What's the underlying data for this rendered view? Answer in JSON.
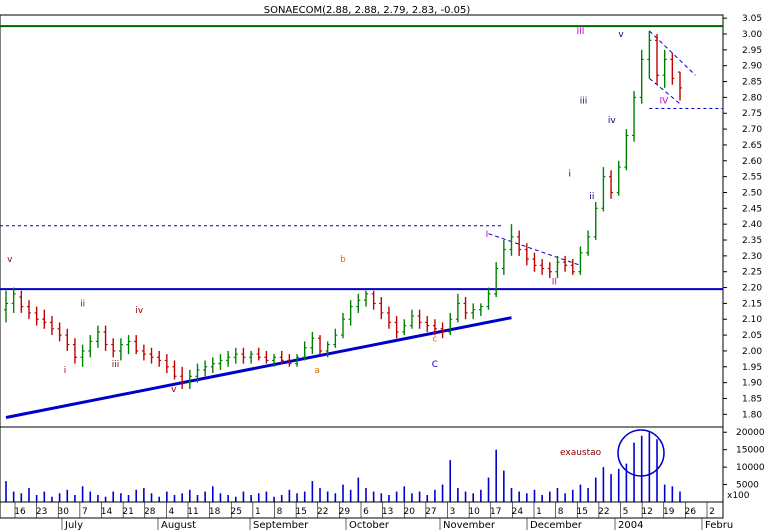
{
  "chart_data": {
    "type": "ohlc",
    "title": "SONAECOM(2.88, 2.88, 2.79, 2.83, -0.05)",
    "price_axis": {
      "ylim": [
        1.76,
        3.06
      ],
      "ticks": [
        "3.05",
        "3.00",
        "2.95",
        "2.90",
        "2.85",
        "2.80",
        "2.75",
        "2.70",
        "2.65",
        "2.60",
        "2.55",
        "2.50",
        "2.45",
        "2.40",
        "2.35",
        "2.30",
        "2.25",
        "2.20",
        "2.15",
        "2.10",
        "2.05",
        "2.00",
        "1.95",
        "1.90",
        "1.85",
        "1.80"
      ]
    },
    "volume_axis": {
      "ylim": [
        0,
        21500
      ],
      "ticks": [
        "20000",
        "15000",
        "10000",
        "5000"
      ],
      "unit_label": "x100"
    },
    "date_axis": {
      "day_ticks": [
        "16",
        "23",
        "30",
        "7",
        "14",
        "21",
        "28",
        "4",
        "11",
        "18",
        "25",
        "1",
        "8",
        "15",
        "22",
        "29",
        "6",
        "13",
        "20",
        "27",
        "3",
        "10",
        "17",
        "24",
        "1",
        "8",
        "15",
        "22",
        "5",
        "12",
        "19",
        "26",
        "2"
      ],
      "month_labels": [
        "July",
        "August",
        "September",
        "October",
        "November",
        "December",
        "2004",
        "Febru"
      ]
    },
    "horizontal_lines": [
      {
        "price": 3.025,
        "color": "#006400",
        "style": "solid"
      },
      {
        "price": 2.195,
        "color": "#0000cc",
        "style": "solid"
      },
      {
        "price": 2.395,
        "color": "#0000cc",
        "style": "dashed"
      },
      {
        "price": 2.765,
        "color": "#0000cc",
        "style": "dashed"
      }
    ],
    "price_series": [
      {
        "o": 2.13,
        "h": 2.19,
        "l": 2.09,
        "c": 2.15
      },
      {
        "o": 2.15,
        "h": 2.2,
        "l": 2.12,
        "c": 2.18
      },
      {
        "o": 2.17,
        "h": 2.19,
        "l": 2.12,
        "c": 2.14
      },
      {
        "o": 2.14,
        "h": 2.16,
        "l": 2.1,
        "c": 2.12
      },
      {
        "o": 2.12,
        "h": 2.14,
        "l": 2.08,
        "c": 2.1
      },
      {
        "o": 2.1,
        "h": 2.13,
        "l": 2.07,
        "c": 2.09
      },
      {
        "o": 2.09,
        "h": 2.11,
        "l": 2.05,
        "c": 2.07
      },
      {
        "o": 2.07,
        "h": 2.09,
        "l": 2.03,
        "c": 2.05
      },
      {
        "o": 2.05,
        "h": 2.07,
        "l": 2.0,
        "c": 2.02
      },
      {
        "o": 2.02,
        "h": 2.04,
        "l": 1.96,
        "c": 1.98
      },
      {
        "o": 1.98,
        "h": 2.02,
        "l": 1.95,
        "c": 2.0
      },
      {
        "o": 2.0,
        "h": 2.05,
        "l": 1.98,
        "c": 2.03
      },
      {
        "o": 2.03,
        "h": 2.08,
        "l": 2.01,
        "c": 2.06
      },
      {
        "o": 2.06,
        "h": 2.08,
        "l": 2.0,
        "c": 2.02
      },
      {
        "o": 2.02,
        "h": 2.04,
        "l": 1.98,
        "c": 2.0
      },
      {
        "o": 2.0,
        "h": 2.04,
        "l": 1.97,
        "c": 2.02
      },
      {
        "o": 2.02,
        "h": 2.05,
        "l": 1.99,
        "c": 2.03
      },
      {
        "o": 2.03,
        "h": 2.05,
        "l": 1.99,
        "c": 2.0
      },
      {
        "o": 2.0,
        "h": 2.02,
        "l": 1.97,
        "c": 1.99
      },
      {
        "o": 1.99,
        "h": 2.01,
        "l": 1.96,
        "c": 1.98
      },
      {
        "o": 1.98,
        "h": 2.0,
        "l": 1.95,
        "c": 1.97
      },
      {
        "o": 1.97,
        "h": 1.99,
        "l": 1.93,
        "c": 1.95
      },
      {
        "o": 1.95,
        "h": 1.97,
        "l": 1.91,
        "c": 1.92
      },
      {
        "o": 1.92,
        "h": 1.95,
        "l": 1.88,
        "c": 1.9
      },
      {
        "o": 1.9,
        "h": 1.94,
        "l": 1.88,
        "c": 1.92
      },
      {
        "o": 1.92,
        "h": 1.96,
        "l": 1.9,
        "c": 1.94
      },
      {
        "o": 1.94,
        "h": 1.97,
        "l": 1.92,
        "c": 1.95
      },
      {
        "o": 1.95,
        "h": 1.98,
        "l": 1.93,
        "c": 1.96
      },
      {
        "o": 1.96,
        "h": 1.99,
        "l": 1.94,
        "c": 1.97
      },
      {
        "o": 1.97,
        "h": 2.0,
        "l": 1.95,
        "c": 1.98
      },
      {
        "o": 1.98,
        "h": 2.01,
        "l": 1.96,
        "c": 1.99
      },
      {
        "o": 1.99,
        "h": 2.01,
        "l": 1.96,
        "c": 1.98
      },
      {
        "o": 1.98,
        "h": 2.0,
        "l": 1.96,
        "c": 1.99
      },
      {
        "o": 1.99,
        "h": 2.01,
        "l": 1.97,
        "c": 1.98
      },
      {
        "o": 1.98,
        "h": 2.0,
        "l": 1.96,
        "c": 1.97
      },
      {
        "o": 1.97,
        "h": 1.99,
        "l": 1.95,
        "c": 1.98
      },
      {
        "o": 1.98,
        "h": 2.0,
        "l": 1.96,
        "c": 1.97
      },
      {
        "o": 1.97,
        "h": 1.99,
        "l": 1.95,
        "c": 1.96
      },
      {
        "o": 1.96,
        "h": 1.99,
        "l": 1.95,
        "c": 1.98
      },
      {
        "o": 1.98,
        "h": 2.03,
        "l": 1.97,
        "c": 2.01
      },
      {
        "o": 2.01,
        "h": 2.06,
        "l": 1.99,
        "c": 2.04
      },
      {
        "o": 2.04,
        "h": 2.05,
        "l": 1.99,
        "c": 2.0
      },
      {
        "o": 2.0,
        "h": 2.03,
        "l": 1.98,
        "c": 2.02
      },
      {
        "o": 2.02,
        "h": 2.07,
        "l": 2.01,
        "c": 2.05
      },
      {
        "o": 2.05,
        "h": 2.12,
        "l": 2.04,
        "c": 2.1
      },
      {
        "o": 2.1,
        "h": 2.16,
        "l": 2.08,
        "c": 2.14
      },
      {
        "o": 2.14,
        "h": 2.18,
        "l": 2.12,
        "c": 2.16
      },
      {
        "o": 2.16,
        "h": 2.19,
        "l": 2.14,
        "c": 2.18
      },
      {
        "o": 2.18,
        "h": 2.19,
        "l": 2.13,
        "c": 2.15
      },
      {
        "o": 2.15,
        "h": 2.17,
        "l": 2.1,
        "c": 2.12
      },
      {
        "o": 2.12,
        "h": 2.14,
        "l": 2.07,
        "c": 2.09
      },
      {
        "o": 2.09,
        "h": 2.11,
        "l": 2.04,
        "c": 2.06
      },
      {
        "o": 2.06,
        "h": 2.1,
        "l": 2.05,
        "c": 2.08
      },
      {
        "o": 2.08,
        "h": 2.13,
        "l": 2.07,
        "c": 2.11
      },
      {
        "o": 2.11,
        "h": 2.13,
        "l": 2.07,
        "c": 2.09
      },
      {
        "o": 2.09,
        "h": 2.11,
        "l": 2.06,
        "c": 2.08
      },
      {
        "o": 2.08,
        "h": 2.1,
        "l": 2.05,
        "c": 2.07
      },
      {
        "o": 2.07,
        "h": 2.09,
        "l": 2.04,
        "c": 2.06
      },
      {
        "o": 2.06,
        "h": 2.12,
        "l": 2.05,
        "c": 2.1
      },
      {
        "o": 2.1,
        "h": 2.18,
        "l": 2.09,
        "c": 2.15
      },
      {
        "o": 2.15,
        "h": 2.17,
        "l": 2.1,
        "c": 2.12
      },
      {
        "o": 2.12,
        "h": 2.15,
        "l": 2.1,
        "c": 2.13
      },
      {
        "o": 2.13,
        "h": 2.15,
        "l": 2.11,
        "c": 2.14
      },
      {
        "o": 2.14,
        "h": 2.2,
        "l": 2.13,
        "c": 2.18
      },
      {
        "o": 2.18,
        "h": 2.28,
        "l": 2.17,
        "c": 2.26
      },
      {
        "o": 2.26,
        "h": 2.35,
        "l": 2.24,
        "c": 2.32
      },
      {
        "o": 2.32,
        "h": 2.4,
        "l": 2.3,
        "c": 2.36
      },
      {
        "o": 2.36,
        "h": 2.38,
        "l": 2.3,
        "c": 2.32
      },
      {
        "o": 2.32,
        "h": 2.34,
        "l": 2.27,
        "c": 2.29
      },
      {
        "o": 2.29,
        "h": 2.31,
        "l": 2.25,
        "c": 2.27
      },
      {
        "o": 2.27,
        "h": 2.29,
        "l": 2.24,
        "c": 2.26
      },
      {
        "o": 2.26,
        "h": 2.28,
        "l": 2.23,
        "c": 2.25
      },
      {
        "o": 2.25,
        "h": 2.3,
        "l": 2.23,
        "c": 2.28
      },
      {
        "o": 2.28,
        "h": 2.3,
        "l": 2.25,
        "c": 2.27
      },
      {
        "o": 2.27,
        "h": 2.29,
        "l": 2.24,
        "c": 2.25
      },
      {
        "o": 2.25,
        "h": 2.33,
        "l": 2.24,
        "c": 2.31
      },
      {
        "o": 2.31,
        "h": 2.38,
        "l": 2.3,
        "c": 2.36
      },
      {
        "o": 2.36,
        "h": 2.47,
        "l": 2.35,
        "c": 2.45
      },
      {
        "o": 2.45,
        "h": 2.58,
        "l": 2.44,
        "c": 2.55
      },
      {
        "o": 2.55,
        "h": 2.57,
        "l": 2.48,
        "c": 2.5
      },
      {
        "o": 2.5,
        "h": 2.6,
        "l": 2.49,
        "c": 2.58
      },
      {
        "o": 2.58,
        "h": 2.7,
        "l": 2.57,
        "c": 2.68
      },
      {
        "o": 2.68,
        "h": 2.82,
        "l": 2.66,
        "c": 2.8
      },
      {
        "o": 2.8,
        "h": 2.95,
        "l": 2.78,
        "c": 2.92
      },
      {
        "o": 2.92,
        "h": 3.01,
        "l": 2.86,
        "c": 2.98
      },
      {
        "o": 2.98,
        "h": 3.0,
        "l": 2.84,
        "c": 2.87
      },
      {
        "o": 2.87,
        "h": 2.95,
        "l": 2.83,
        "c": 2.92
      },
      {
        "o": 2.92,
        "h": 2.94,
        "l": 2.84,
        "c": 2.86
      },
      {
        "o": 2.88,
        "h": 2.88,
        "l": 2.79,
        "c": 2.83
      }
    ],
    "volume_series": [
      6000,
      3000,
      2500,
      4000,
      2000,
      3000,
      1500,
      2500,
      3500,
      2000,
      4500,
      3000,
      2000,
      1500,
      3000,
      2500,
      2000,
      3500,
      4000,
      2500,
      1500,
      3000,
      2000,
      2500,
      3500,
      2000,
      3000,
      4500,
      2500,
      2000,
      1500,
      3000,
      2000,
      2500,
      3000,
      1500,
      2000,
      3500,
      2500,
      3000,
      6000,
      4000,
      3000,
      2500,
      5000,
      3500,
      7000,
      4000,
      3000,
      2500,
      2000,
      3000,
      4500,
      2500,
      3000,
      2000,
      3500,
      5000,
      12000,
      4000,
      3000,
      2500,
      3500,
      7000,
      15000,
      9000,
      4000,
      3000,
      2500,
      3500,
      2000,
      3000,
      4000,
      2500,
      3500,
      5000,
      4000,
      7000,
      10000,
      8000,
      9500,
      11000,
      17000,
      19000,
      20000,
      18000,
      5000,
      4500,
      3000
    ],
    "trendlines": [
      {
        "from": [
          0,
          1.79
        ],
        "to": [
          66,
          2.105
        ],
        "color": "#0000cc",
        "width": 3
      },
      {
        "from": [
          63,
          2.37
        ],
        "to": [
          75,
          2.27
        ],
        "color": "#0000cc",
        "style": "dashed"
      },
      {
        "from": [
          84,
          3.01
        ],
        "to": [
          90,
          2.87
        ],
        "color": "#0000cc",
        "style": "dashed"
      },
      {
        "from": [
          84,
          2.86
        ],
        "to": [
          88,
          2.78
        ],
        "color": "#0000cc",
        "style": "dashed"
      }
    ],
    "annotations": [
      {
        "text": "v",
        "i": 0.5,
        "price": 2.28,
        "color": "#8b0000"
      },
      {
        "text": "ii",
        "i": 10,
        "price": 2.14,
        "color": "#8b0000"
      },
      {
        "text": "i",
        "i": 7.7,
        "price": 1.93,
        "color": "#8b0000"
      },
      {
        "text": "iii",
        "i": 14.3,
        "price": 1.95,
        "color": "#8b0000"
      },
      {
        "text": "iv",
        "i": 17.4,
        "price": 2.12,
        "color": "#8b0000"
      },
      {
        "text": "v",
        "i": 21.9,
        "price": 1.87,
        "color": "#8b0000"
      },
      {
        "text": "a",
        "i": 40.6,
        "price": 1.93,
        "color": "#e07000"
      },
      {
        "text": "b",
        "i": 44,
        "price": 2.28,
        "color": "#e07000"
      },
      {
        "text": "c",
        "i": 56,
        "price": 2.03,
        "color": "#e07000"
      },
      {
        "text": "C",
        "i": 56,
        "price": 1.95,
        "color": "#0000cc"
      },
      {
        "text": "I",
        "i": 62.8,
        "price": 2.36,
        "color": "#cc00cc"
      },
      {
        "text": "II",
        "i": 71.6,
        "price": 2.21,
        "color": "#cc00cc"
      },
      {
        "text": "i",
        "i": 73.6,
        "price": 2.55,
        "color": "#000080"
      },
      {
        "text": "ii",
        "i": 76.5,
        "price": 2.48,
        "color": "#000080"
      },
      {
        "text": "iii",
        "i": 75.4,
        "price": 2.78,
        "color": "#000080"
      },
      {
        "text": "iv",
        "i": 79.1,
        "price": 2.72,
        "color": "#000080"
      },
      {
        "text": "v",
        "i": 80.3,
        "price": 2.99,
        "color": "#000080"
      },
      {
        "text": "III",
        "i": 75,
        "price": 3.0,
        "color": "#cc00cc"
      },
      {
        "text": "IV",
        "i": 85.9,
        "price": 2.78,
        "color": "#cc00cc"
      }
    ],
    "volume_annotation": {
      "text": "exaustao",
      "color": "#8b0000"
    }
  }
}
